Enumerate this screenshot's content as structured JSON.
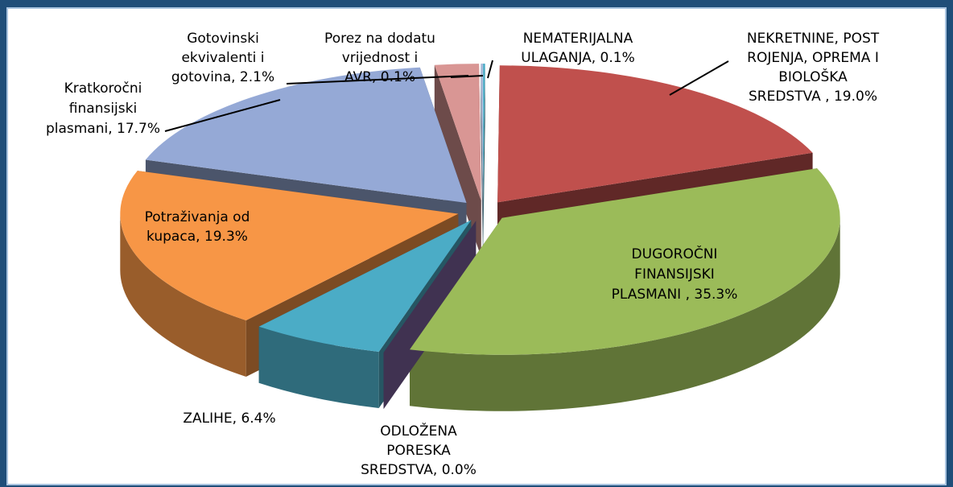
{
  "chart_data": {
    "type": "pie3d",
    "values": [
      0.1,
      19.0,
      35.3,
      0.0,
      6.4,
      19.3,
      17.7,
      2.1,
      0.1
    ],
    "value_labels": [
      [
        "NEMATERIJALNA",
        "ULAGANJA, 0.1%"
      ],
      [
        "NEKRETNINE, POST",
        "ROJENJA, OPREMA I",
        "BIOLOŠKA",
        "SREDSTVA , 19.0%"
      ],
      [
        "DUGOROČNI",
        "FINANSIJSKI",
        "PLASMANI , 35.3%"
      ],
      [
        "ODLOŽENA",
        "PORESKA",
        "SREDSTVA, 0.0%"
      ],
      [
        "ZALIHE, 6.4%"
      ],
      [
        "Potraživanja od",
        "kupaca, 19.3%"
      ],
      [
        "Kratkoročni",
        "finansijski",
        "plasmani, 17.7%"
      ],
      [
        "Gotovinski",
        "ekvivalenti i",
        "gotovina, 2.1%"
      ],
      [
        "Porez na dodatu",
        "vrijednost i",
        "AVR, 0.1%"
      ]
    ],
    "colors": [
      "#4bacc6",
      "#c0504d",
      "#9bbb59",
      "#8064a2",
      "#4bacc6",
      "#f79646",
      "#95a9d6",
      "#d99694",
      "#a5b6d6"
    ]
  }
}
